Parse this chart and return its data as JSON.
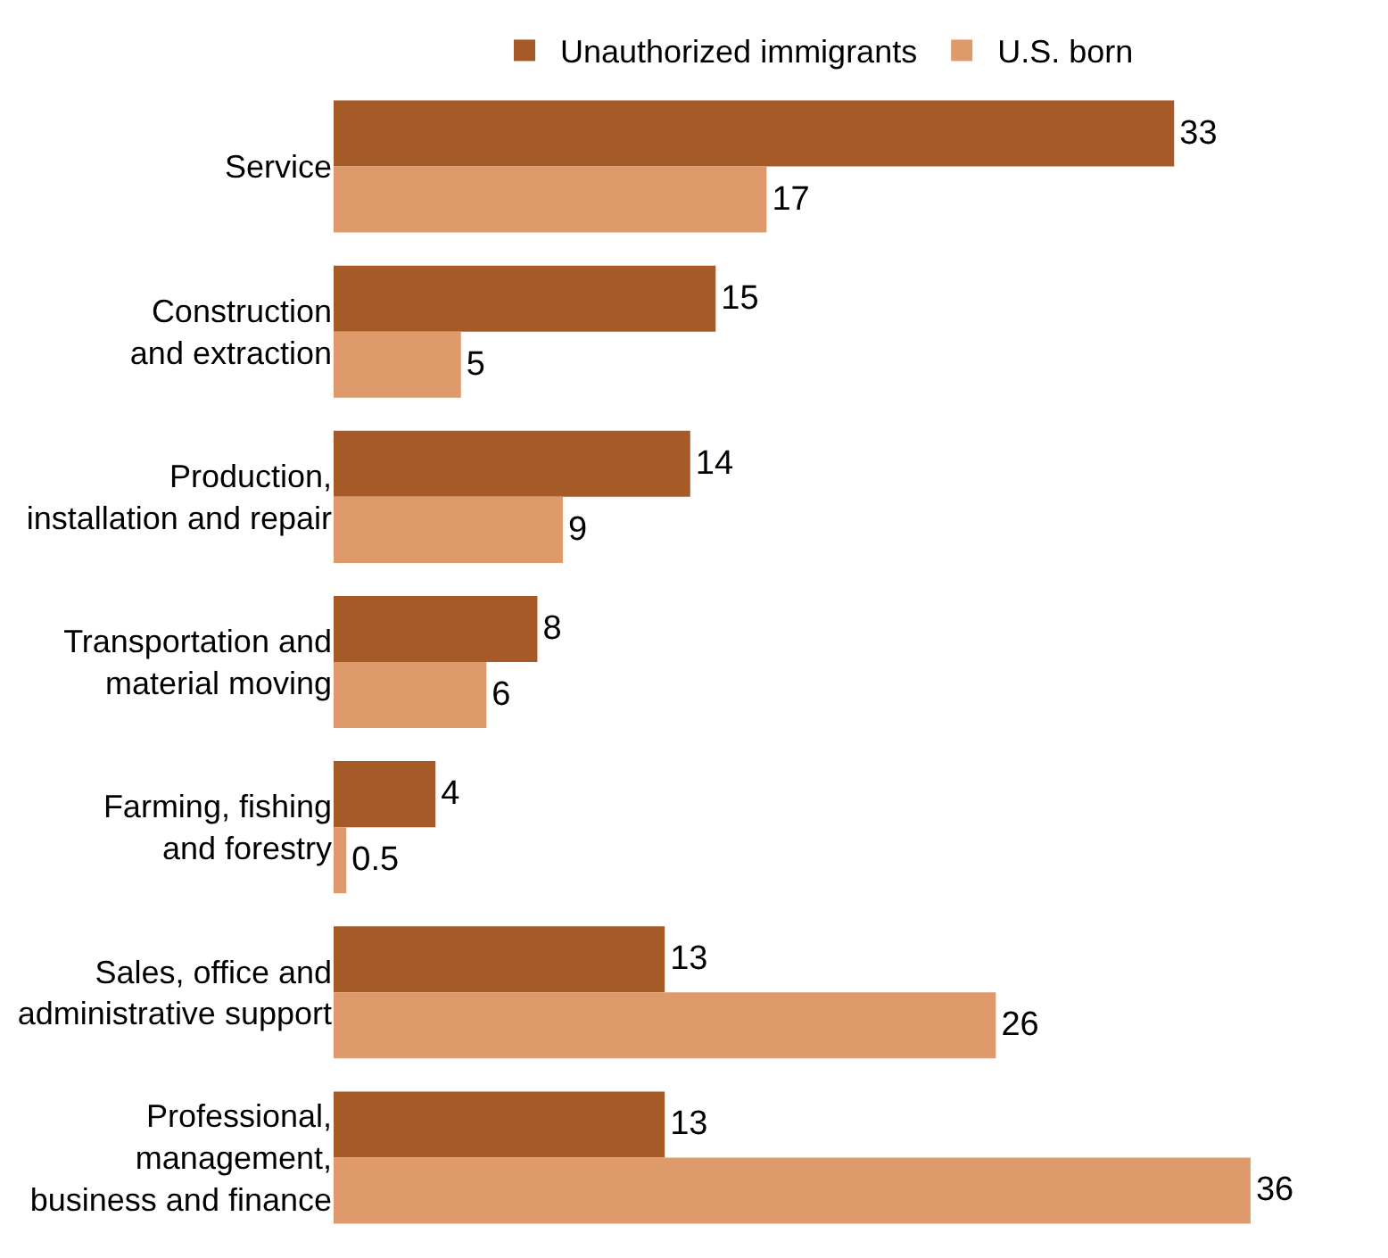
{
  "chart_data": {
    "type": "bar",
    "orientation": "horizontal",
    "categories": [
      "Service",
      "Construction\nand extraction",
      "Production,\ninstallation and repair",
      "Transportation and\nmaterial moving",
      "Farming, fishing\nand forestry",
      "Sales, office and\nadministrative support",
      "Professional,\nmanagement,\nbusiness and finance"
    ],
    "series": [
      {
        "name": "Unauthorized immigrants",
        "color": "#a65a27",
        "values": [
          33,
          15,
          14,
          8,
          4,
          13,
          13
        ]
      },
      {
        "name": "U.S. born",
        "color": "#df9a6b",
        "values": [
          17,
          5,
          9,
          6,
          0.5,
          26,
          36
        ]
      }
    ],
    "data_labels": true,
    "legend": "top",
    "grid": false,
    "tick_labels": "y"
  }
}
